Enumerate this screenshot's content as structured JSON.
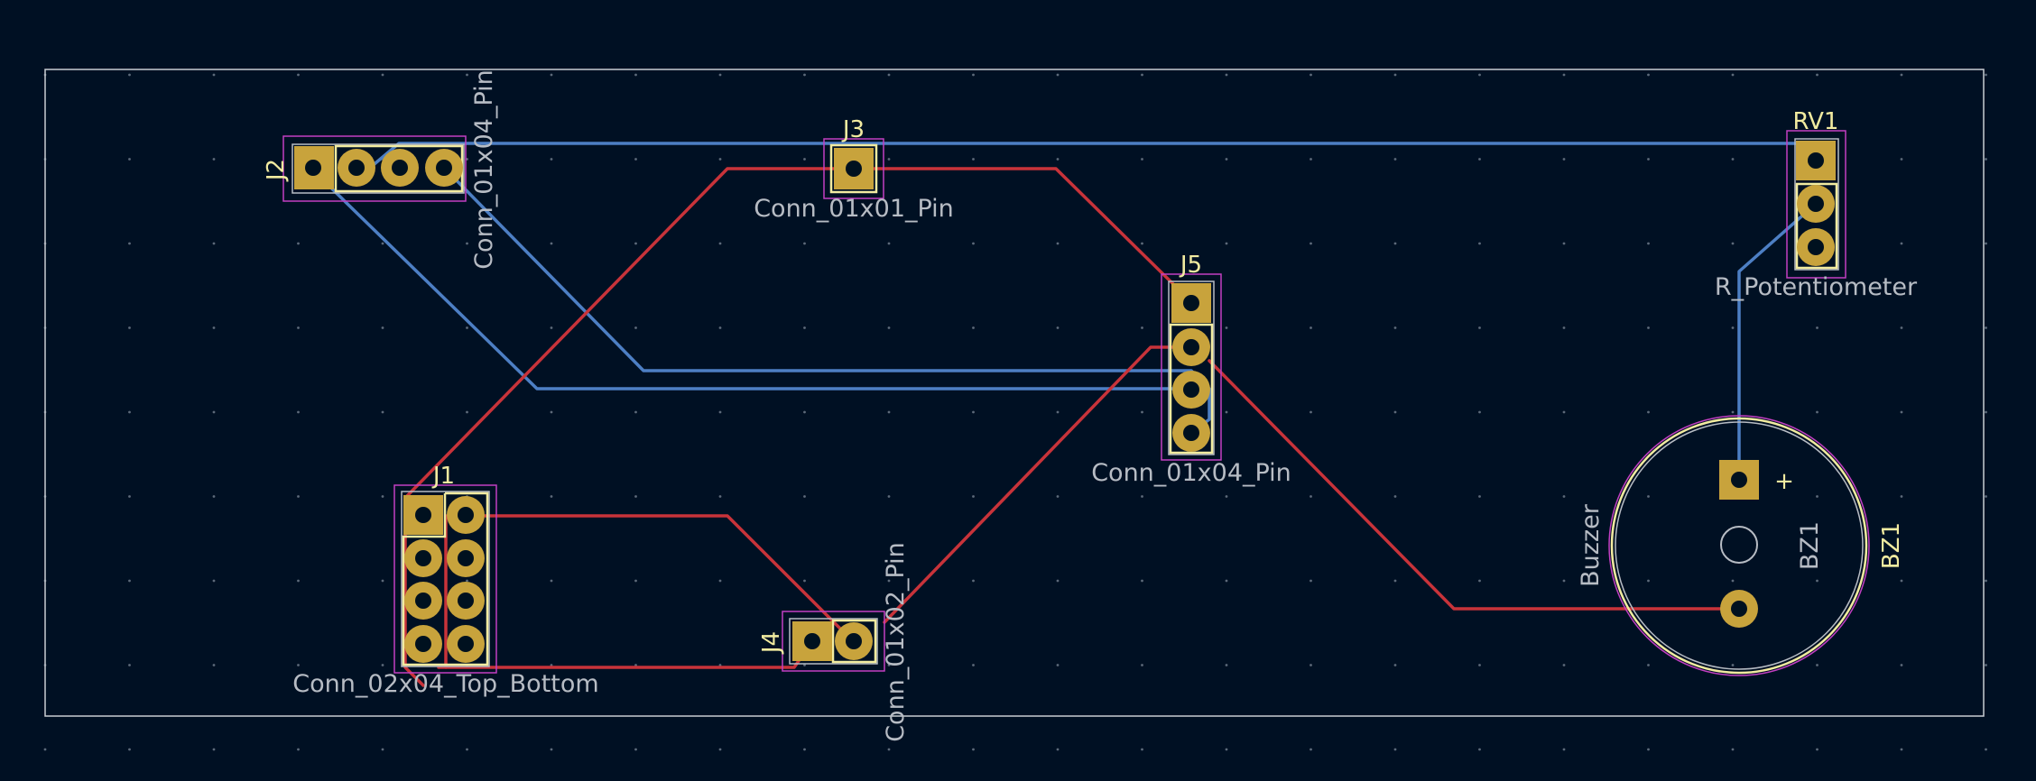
{
  "board": {
    "background_color": "#001023",
    "outline_color": "#c9cdd3",
    "silk_color": "#f2eba0",
    "fab_color": "#b7bcc4",
    "courtyard_color": "#c23fc2",
    "pad_color": "#c8a33c",
    "front_copper_color": "#c8333a",
    "back_copper_color": "#4d7fc4"
  },
  "footprints": {
    "j2": {
      "reference": "J2",
      "value": "Conn_01x04_Pin",
      "pads": 4
    },
    "j3": {
      "reference": "J3",
      "value": "Conn_01x01_Pin",
      "pads": 1
    },
    "j5": {
      "reference": "J5",
      "value": "Conn_01x04_Pin",
      "pads": 4
    },
    "rv1": {
      "reference": "RV1",
      "value": "R_Potentiometer",
      "pads": 3
    },
    "j1": {
      "reference": "J1",
      "value": "Conn_02x04_Top_Bottom",
      "pads": 8
    },
    "j4": {
      "reference": "J4",
      "value": "Conn_01x02_Pin",
      "pads": 2
    },
    "bz1": {
      "reference": "BZ1",
      "fab_reference": "BZ1",
      "value": "Buzzer",
      "polarity_mark": "+",
      "pads": 2
    }
  }
}
